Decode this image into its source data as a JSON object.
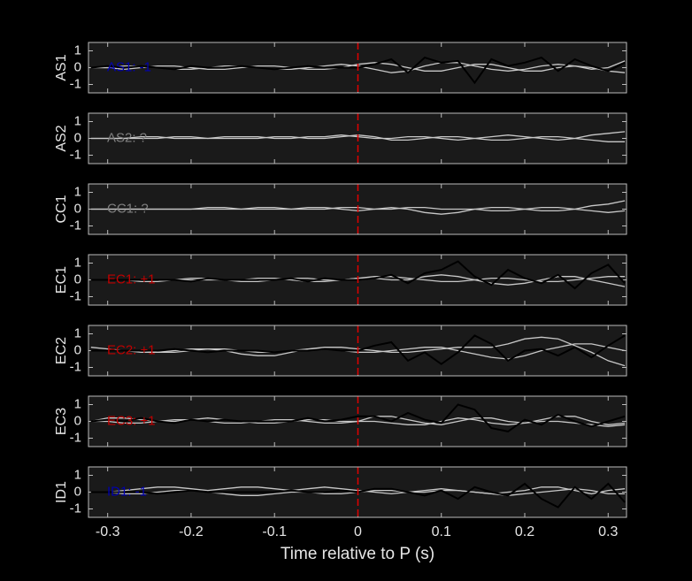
{
  "chart_data": [
    {
      "type": "line",
      "ylabel": "AS1",
      "annotation": "AS1: -1",
      "annotation_color": "#0000b0",
      "xlim": [
        -0.323,
        0.322
      ],
      "ylim": [
        -1.5,
        1.5
      ],
      "yticks": [
        -1,
        0,
        1
      ],
      "xticks": [
        -0.3,
        -0.2,
        -0.1,
        0,
        0.1,
        0.2,
        0.3
      ],
      "vline": 0,
      "vline_color": "#e00000",
      "x": [
        -0.32,
        -0.3,
        -0.28,
        -0.26,
        -0.24,
        -0.22,
        -0.2,
        -0.18,
        -0.16,
        -0.14,
        -0.12,
        -0.1,
        -0.08,
        -0.06,
        -0.04,
        -0.02,
        0,
        0.02,
        0.04,
        0.06,
        0.08,
        0.1,
        0.12,
        0.14,
        0.16,
        0.18,
        0.2,
        0.22,
        0.24,
        0.26,
        0.28,
        0.3,
        0.32
      ],
      "series": [
        {
          "color": "#c8c8c8",
          "values": [
            0,
            0,
            0.1,
            0.1,
            0,
            -0.1,
            -0.1,
            0,
            0.1,
            0.1,
            0,
            -0.1,
            -0.1,
            0,
            0.1,
            0.2,
            0.1,
            -0.1,
            -0.3,
            -0.2,
            0.1,
            0.3,
            0.3,
            0.1,
            -0.1,
            -0.2,
            -0.1,
            0.1,
            0.2,
            0.1,
            -0.1,
            0,
            0.4
          ]
        },
        {
          "color": "#c8c8c8",
          "values": [
            0,
            0,
            -0.1,
            0,
            0.1,
            0.1,
            0,
            -0.1,
            -0.1,
            0,
            0.1,
            0.1,
            0,
            -0.1,
            -0.1,
            0,
            0.2,
            0.3,
            0.2,
            0,
            -0.2,
            -0.2,
            0,
            0.2,
            0.2,
            0,
            -0.2,
            -0.2,
            0,
            0.1,
            0,
            -0.2,
            -0.3
          ]
        },
        {
          "color": "#000000",
          "values": [
            0,
            0.1,
            0,
            0.1,
            0,
            -0.1,
            0.1,
            0,
            0,
            0.1,
            0,
            -0.1,
            0,
            0.1,
            0,
            0,
            0,
            0.2,
            0.5,
            -0.3,
            0.6,
            0.3,
            0.4,
            -0.9,
            0.5,
            0.1,
            0.3,
            0.6,
            -0.2,
            0.5,
            0.1,
            -0.2,
            0.3
          ]
        }
      ]
    },
    {
      "type": "line",
      "ylabel": "AS2",
      "annotation": "AS2: ?",
      "annotation_color": "#808080",
      "xlim": [
        -0.323,
        0.322
      ],
      "ylim": [
        -1.5,
        1.5
      ],
      "yticks": [
        -1,
        0,
        1
      ],
      "xticks": [
        -0.3,
        -0.2,
        -0.1,
        0,
        0.1,
        0.2,
        0.3
      ],
      "vline": 0,
      "vline_color": "#e00000",
      "x": [
        -0.32,
        -0.3,
        -0.28,
        -0.26,
        -0.24,
        -0.22,
        -0.2,
        -0.18,
        -0.16,
        -0.14,
        -0.12,
        -0.1,
        -0.08,
        -0.06,
        -0.04,
        -0.02,
        0,
        0.02,
        0.04,
        0.06,
        0.08,
        0.1,
        0.12,
        0.14,
        0.16,
        0.18,
        0.2,
        0.22,
        0.24,
        0.26,
        0.28,
        0.3,
        0.32
      ],
      "series": [
        {
          "color": "#c8c8c8",
          "values": [
            0,
            0,
            0,
            0.1,
            0.1,
            0,
            0,
            0,
            0.1,
            0.1,
            0.1,
            0,
            0,
            0.1,
            0.1,
            0.2,
            0.1,
            0,
            0,
            0.1,
            0.1,
            0,
            -0.1,
            0,
            0.1,
            0.2,
            0.1,
            0,
            -0.1,
            0,
            0.2,
            0.3,
            0.4
          ]
        },
        {
          "color": "#c8c8c8",
          "values": [
            0,
            0,
            0,
            0,
            0,
            0.1,
            0.1,
            0,
            0,
            0,
            0,
            0.1,
            0.1,
            0,
            0,
            0.1,
            0.2,
            0.1,
            -0.1,
            -0.1,
            0,
            0.1,
            0.1,
            0,
            -0.1,
            -0.1,
            0,
            0.1,
            0.1,
            0,
            -0.1,
            -0.2,
            -0.2
          ]
        }
      ]
    },
    {
      "type": "line",
      "ylabel": "CC1",
      "annotation": "CC1: ?",
      "annotation_color": "#808080",
      "xlim": [
        -0.323,
        0.322
      ],
      "ylim": [
        -1.5,
        1.5
      ],
      "yticks": [
        -1,
        0,
        1
      ],
      "xticks": [
        -0.3,
        -0.2,
        -0.1,
        0,
        0.1,
        0.2,
        0.3
      ],
      "vline": 0,
      "vline_color": "#e00000",
      "x": [
        -0.32,
        -0.3,
        -0.28,
        -0.26,
        -0.24,
        -0.22,
        -0.2,
        -0.18,
        -0.16,
        -0.14,
        -0.12,
        -0.1,
        -0.08,
        -0.06,
        -0.04,
        -0.02,
        0,
        0.02,
        0.04,
        0.06,
        0.08,
        0.1,
        0.12,
        0.14,
        0.16,
        0.18,
        0.2,
        0.22,
        0.24,
        0.26,
        0.28,
        0.3,
        0.32
      ],
      "series": [
        {
          "color": "#c8c8c8",
          "values": [
            0,
            0,
            0,
            0,
            0,
            0,
            0,
            0.1,
            0.1,
            0,
            0,
            0,
            0,
            0.1,
            0.1,
            0,
            -0.1,
            0,
            0.1,
            0,
            -0.2,
            -0.3,
            -0.2,
            0,
            0.1,
            0.1,
            0,
            -0.1,
            -0.1,
            0,
            0.2,
            0.3,
            0.5
          ]
        },
        {
          "color": "#c8c8c8",
          "values": [
            0,
            0,
            0,
            0,
            0,
            0,
            0,
            0,
            0,
            0,
            0.1,
            0.1,
            0,
            0,
            0,
            0.1,
            0.1,
            0,
            0,
            0.1,
            0.1,
            0,
            0,
            0,
            -0.1,
            -0.1,
            0,
            0.1,
            0.1,
            0,
            -0.1,
            -0.2,
            -0.1
          ]
        }
      ]
    },
    {
      "type": "line",
      "ylabel": "EC1",
      "annotation": "EC1: +1",
      "annotation_color": "#c00000",
      "xlim": [
        -0.323,
        0.322
      ],
      "ylim": [
        -1.5,
        1.5
      ],
      "yticks": [
        -1,
        0,
        1
      ],
      "xticks": [
        -0.3,
        -0.2,
        -0.1,
        0,
        0.1,
        0.2,
        0.3
      ],
      "vline": 0,
      "vline_color": "#e00000",
      "x": [
        -0.32,
        -0.3,
        -0.28,
        -0.26,
        -0.24,
        -0.22,
        -0.2,
        -0.18,
        -0.16,
        -0.14,
        -0.12,
        -0.1,
        -0.08,
        -0.06,
        -0.04,
        -0.02,
        0,
        0.02,
        0.04,
        0.06,
        0.08,
        0.1,
        0.12,
        0.14,
        0.16,
        0.18,
        0.2,
        0.22,
        0.24,
        0.26,
        0.28,
        0.3,
        0.32
      ],
      "series": [
        {
          "color": "#c8c8c8",
          "values": [
            0,
            0,
            0,
            -0.1,
            -0.1,
            0,
            0.1,
            0.1,
            0,
            -0.1,
            -0.1,
            0,
            0.1,
            0.1,
            0,
            0,
            0.1,
            0.1,
            0,
            0,
            0.2,
            0.3,
            0.2,
            0,
            -0.2,
            -0.3,
            -0.2,
            0,
            0.2,
            0.2,
            0,
            -0.2,
            -0.4
          ]
        },
        {
          "color": "#c8c8c8",
          "values": [
            0,
            0,
            0,
            0,
            0,
            0,
            0,
            0,
            0,
            0,
            0.1,
            0.1,
            0,
            -0.1,
            -0.1,
            0,
            0.1,
            0.2,
            0.2,
            0.1,
            0,
            -0.1,
            -0.1,
            0,
            0.1,
            0.1,
            0,
            -0.1,
            -0.1,
            0,
            0.1,
            0.2,
            0.2
          ]
        },
        {
          "color": "#000000",
          "values": [
            0,
            0,
            0,
            0,
            0,
            0,
            -0.1,
            0.1,
            0,
            0,
            0,
            0,
            0.1,
            -0.1,
            0.1,
            0,
            0,
            0.1,
            0.3,
            -0.2,
            0.4,
            0.6,
            1.1,
            0.2,
            -0.3,
            0.6,
            0.1,
            -0.2,
            0.3,
            -0.5,
            0.4,
            0.9,
            -0.2
          ]
        }
      ]
    },
    {
      "type": "line",
      "ylabel": "EC2",
      "annotation": "EC2: +1",
      "annotation_color": "#c00000",
      "xlim": [
        -0.323,
        0.322
      ],
      "ylim": [
        -1.5,
        1.5
      ],
      "yticks": [
        -1,
        0,
        1
      ],
      "xticks": [
        -0.3,
        -0.2,
        -0.1,
        0,
        0.1,
        0.2,
        0.3
      ],
      "vline": 0,
      "vline_color": "#e00000",
      "x": [
        -0.32,
        -0.3,
        -0.28,
        -0.26,
        -0.24,
        -0.22,
        -0.2,
        -0.18,
        -0.16,
        -0.14,
        -0.12,
        -0.1,
        -0.08,
        -0.06,
        -0.04,
        -0.02,
        0,
        0.02,
        0.04,
        0.06,
        0.08,
        0.1,
        0.12,
        0.14,
        0.16,
        0.18,
        0.2,
        0.22,
        0.24,
        0.26,
        0.28,
        0.3,
        0.32
      ],
      "series": [
        {
          "color": "#c8c8c8",
          "values": [
            0.2,
            0.1,
            0,
            -0.1,
            -0.1,
            0,
            0.1,
            0.1,
            0,
            -0.2,
            -0.3,
            -0.3,
            -0.1,
            0.1,
            0.2,
            0.2,
            0.1,
            0,
            -0.1,
            -0.1,
            0,
            0.1,
            0.2,
            0.2,
            0.2,
            0.4,
            0.7,
            0.8,
            0.7,
            0.3,
            -0.1,
            -0.6,
            -0.9
          ]
        },
        {
          "color": "#c8c8c8",
          "values": [
            0,
            0,
            0,
            0,
            -0.1,
            -0.1,
            0,
            0.1,
            0.1,
            0,
            -0.1,
            -0.1,
            0,
            0.1,
            0.1,
            0,
            -0.1,
            -0.1,
            0,
            0.1,
            0.2,
            0.2,
            0,
            -0.2,
            -0.4,
            -0.5,
            -0.3,
            0,
            0.2,
            0.4,
            0.4,
            0.2,
            0
          ]
        },
        {
          "color": "#000000",
          "values": [
            0,
            0,
            0,
            0,
            0,
            0.1,
            0,
            -0.1,
            0,
            0,
            0,
            -0.1,
            0,
            0,
            0.1,
            0,
            0,
            0.3,
            0.5,
            -0.6,
            -0.1,
            -0.8,
            -0.1,
            0.9,
            0.4,
            -0.6,
            0,
            0.1,
            -0.3,
            0.2,
            -0.4,
            0.3,
            0.9
          ]
        }
      ]
    },
    {
      "type": "line",
      "ylabel": "EC3",
      "annotation": "EC3: +1",
      "annotation_color": "#c00000",
      "xlim": [
        -0.323,
        0.322
      ],
      "ylim": [
        -1.5,
        1.5
      ],
      "yticks": [
        -1,
        0,
        1
      ],
      "xticks": [
        -0.3,
        -0.2,
        -0.1,
        0,
        0.1,
        0.2,
        0.3
      ],
      "vline": 0,
      "vline_color": "#e00000",
      "x": [
        -0.32,
        -0.3,
        -0.28,
        -0.26,
        -0.24,
        -0.22,
        -0.2,
        -0.18,
        -0.16,
        -0.14,
        -0.12,
        -0.1,
        -0.08,
        -0.06,
        -0.04,
        -0.02,
        0,
        0.02,
        0.04,
        0.06,
        0.08,
        0.1,
        0.12,
        0.14,
        0.16,
        0.18,
        0.2,
        0.22,
        0.24,
        0.26,
        0.28,
        0.3,
        0.32
      ],
      "series": [
        {
          "color": "#c8c8c8",
          "values": [
            0,
            0.2,
            0.2,
            0.1,
            0,
            0,
            0.1,
            0.2,
            0.1,
            0,
            -0.1,
            -0.1,
            0,
            0.1,
            0.1,
            0,
            0,
            0.3,
            0.3,
            0.1,
            -0.1,
            -0.2,
            0,
            0.2,
            0.2,
            0,
            -0.1,
            0.1,
            0.3,
            0.3,
            0,
            -0.2,
            -0.1
          ]
        },
        {
          "color": "#c8c8c8",
          "values": [
            0,
            0,
            -0.1,
            -0.1,
            0,
            0.1,
            0.1,
            0,
            -0.1,
            -0.1,
            0,
            0.1,
            0.1,
            0,
            -0.1,
            -0.1,
            0,
            0,
            -0.1,
            -0.2,
            -0.2,
            0,
            0.2,
            0.1,
            -0.1,
            -0.2,
            -0.1,
            0,
            0,
            -0.1,
            -0.2,
            -0.3,
            -0.2
          ]
        },
        {
          "color": "#000000",
          "values": [
            0,
            0.1,
            0,
            0.2,
            0,
            -0.1,
            0.1,
            0,
            0.1,
            0,
            0,
            0,
            0,
            0.2,
            0,
            0.1,
            0.3,
            0.3,
            0,
            0.5,
            0.1,
            -0.1,
            1.0,
            0.7,
            -0.4,
            -0.6,
            0.1,
            -0.2,
            0.4,
            0,
            -0.3,
            0,
            0.3
          ]
        }
      ]
    },
    {
      "type": "line",
      "ylabel": "ID1",
      "annotation": "ID1: -1",
      "annotation_color": "#0000b0",
      "xlabel": "Time relative to P (s)",
      "xlim": [
        -0.323,
        0.322
      ],
      "ylim": [
        -1.5,
        1.5
      ],
      "yticks": [
        -1,
        0,
        1
      ],
      "xticks": [
        -0.3,
        -0.2,
        -0.1,
        0,
        0.1,
        0.2,
        0.3
      ],
      "vline": 0,
      "vline_color": "#e00000",
      "x": [
        -0.32,
        -0.3,
        -0.28,
        -0.26,
        -0.24,
        -0.22,
        -0.2,
        -0.18,
        -0.16,
        -0.14,
        -0.12,
        -0.1,
        -0.08,
        -0.06,
        -0.04,
        -0.02,
        0,
        0.02,
        0.04,
        0.06,
        0.08,
        0.1,
        0.12,
        0.14,
        0.16,
        0.18,
        0.2,
        0.22,
        0.24,
        0.26,
        0.28,
        0.3,
        0.32
      ],
      "series": [
        {
          "color": "#c8c8c8",
          "values": [
            0,
            0,
            0.1,
            0.2,
            0.3,
            0.3,
            0.2,
            0.1,
            0.2,
            0.3,
            0.3,
            0.2,
            0.1,
            0.2,
            0.3,
            0.2,
            0.1,
            0,
            -0.1,
            0,
            0.1,
            0.2,
            0.1,
            0,
            -0.1,
            0,
            0.1,
            0.3,
            0.3,
            0.1,
            -0.1,
            0.1,
            0.2
          ]
        },
        {
          "color": "#c8c8c8",
          "values": [
            0,
            0,
            -0.1,
            -0.1,
            0,
            0.1,
            0.1,
            0,
            -0.1,
            -0.2,
            -0.2,
            -0.1,
            0,
            0,
            -0.1,
            -0.1,
            0,
            0.1,
            0.1,
            0,
            0,
            0.1,
            0.1,
            0,
            -0.1,
            -0.2,
            -0.1,
            0,
            0.1,
            0.2,
            0.1,
            -0.1,
            -0.1
          ]
        },
        {
          "color": "#000000",
          "values": [
            0,
            0,
            0,
            0,
            -0.1,
            0,
            0.1,
            0,
            0,
            0,
            0,
            0,
            0.1,
            0,
            0,
            0.1,
            0,
            0.2,
            0.2,
            0,
            -0.2,
            0.1,
            -0.4,
            0.3,
            0,
            -0.2,
            0.5,
            -0.4,
            -0.9,
            0.3,
            -0.4,
            0.5,
            -0.6
          ]
        }
      ]
    }
  ]
}
